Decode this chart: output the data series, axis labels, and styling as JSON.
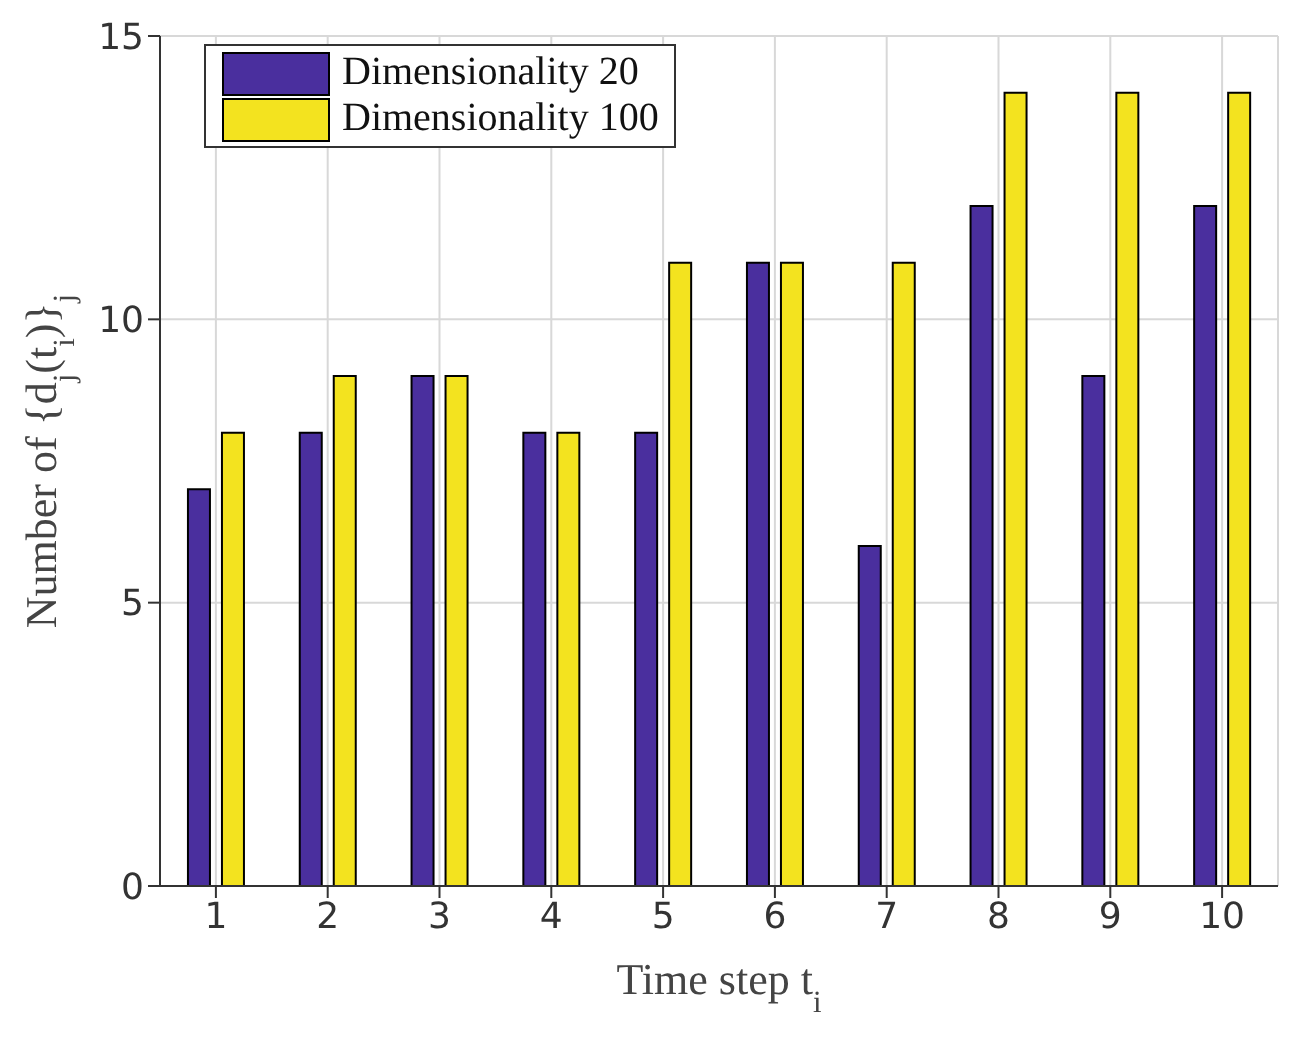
{
  "chart_data": {
    "type": "bar",
    "xlabel": "Time step t$_{i}$",
    "ylabel": "Number of {d$_{j}$(t$_{i}$)}$_{j}$",
    "categories": [
      "1",
      "2",
      "3",
      "4",
      "5",
      "6",
      "7",
      "8",
      "9",
      "10"
    ],
    "series": [
      {
        "name": "Dimensionality 20",
        "color": "#4a2f9e",
        "values": [
          7,
          8,
          9,
          8,
          8,
          11,
          6,
          12,
          9,
          12
        ]
      },
      {
        "name": "Dimensionality 100",
        "color": "#f3e31f",
        "values": [
          8,
          9,
          9,
          8,
          11,
          11,
          11,
          14,
          14,
          14
        ]
      }
    ],
    "ylim": [
      0,
      15
    ],
    "yticks": [
      0,
      5,
      10,
      15
    ],
    "grid": true,
    "legend": "top left"
  }
}
